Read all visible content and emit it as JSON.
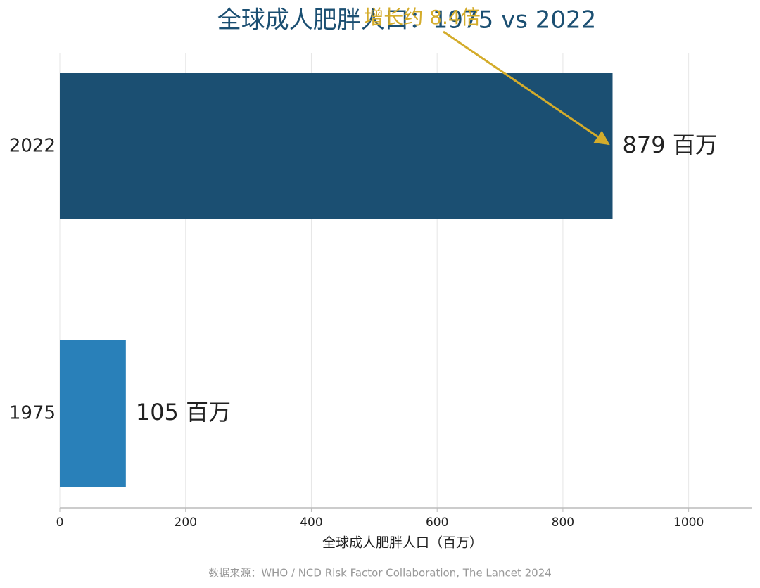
{
  "chart_data": {
    "type": "barh",
    "title": "全球成人肥胖人口：1975 vs 2022",
    "categories": [
      "1975",
      "2022"
    ],
    "values": [
      105,
      879
    ],
    "value_labels": [
      "105 百万",
      "879 百万"
    ],
    "colors": [
      "#2980b9",
      "#1b4f72"
    ],
    "xlabel": "全球成人肥胖人口（百万）",
    "xlim": [
      0,
      1100
    ],
    "xticks": [
      0,
      200,
      400,
      600,
      800,
      1000
    ],
    "grid": true,
    "annotation": "增长约 8.4倍",
    "source": "数据来源：WHO / NCD Risk Factor Collaboration, The Lancet 2024"
  }
}
